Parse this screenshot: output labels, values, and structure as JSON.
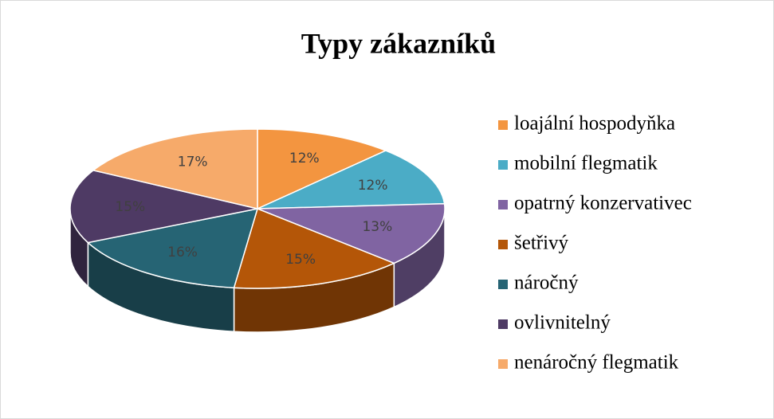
{
  "chart_data": {
    "type": "pie",
    "title": "Typy zákazníků",
    "categories": [
      "loajální hospodyňka",
      "mobilní flegmatik",
      "opatrný konzervativec",
      "šetřivý",
      "náročný",
      "ovlivnitelný",
      "nenáročný flegmatik"
    ],
    "values": [
      12,
      12,
      13,
      15,
      16,
      15,
      17
    ],
    "value_labels": [
      "12%",
      "12%",
      "13%",
      "15%",
      "16%",
      "15%",
      "17%"
    ],
    "colors": [
      "#f39540",
      "#4bacc6",
      "#8064a2",
      "#b45608",
      "#266474",
      "#4e3a64",
      "#f6aa6a"
    ],
    "legend": "right"
  }
}
